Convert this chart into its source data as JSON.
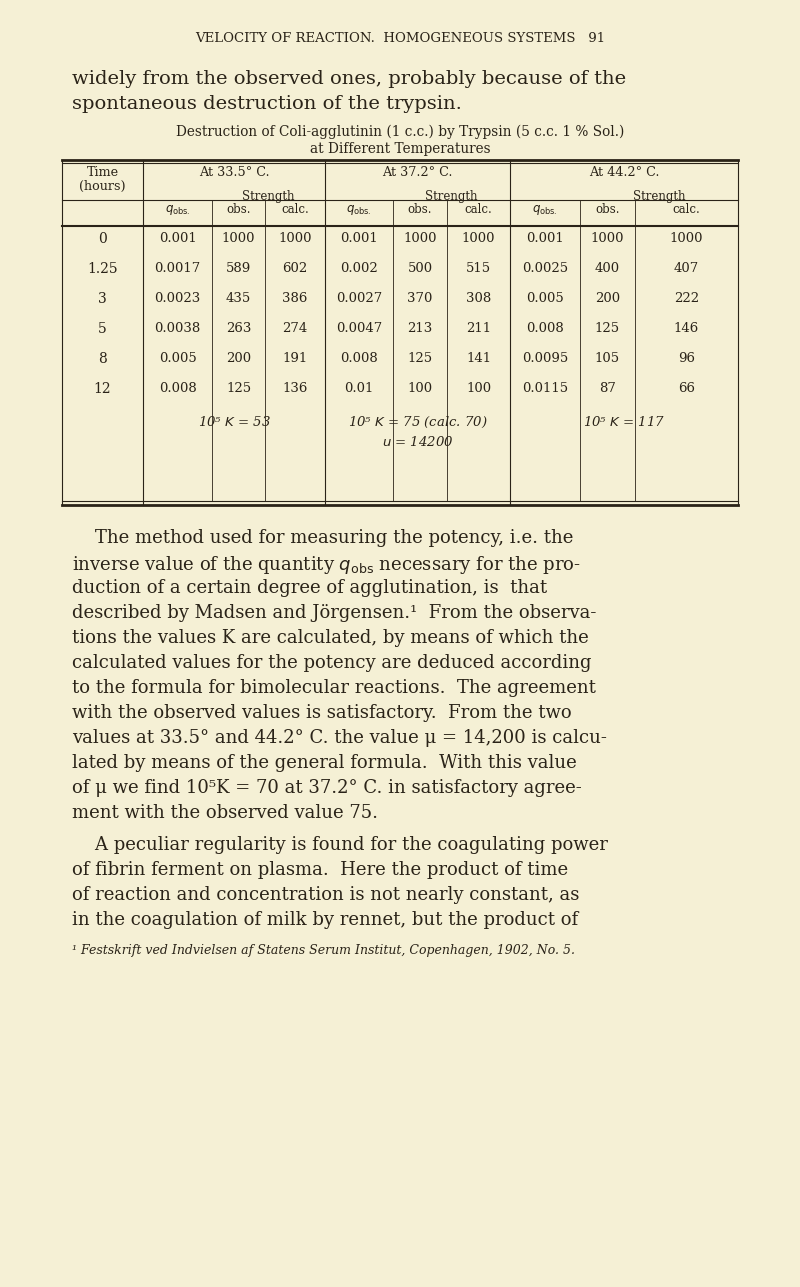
{
  "bg_color": "#f5f0d5",
  "text_color": "#2a2318",
  "header_text": "VELOCITY OF REACTION.  HOMOGENEOUS SYSTEMS   91",
  "intro_lines": [
    "widely from the observed ones, probably because of the",
    "spontaneous destruction of the trypsin.  "
  ],
  "table_title_line1": "Destruction of Coli-agglutinin (1 c.c.) by Trypsin (5 c.c. 1 % Sol.)",
  "table_title_line2": "at Different Temperatures",
  "table_data": {
    "time": [
      "0",
      "1.25",
      "3",
      "5",
      "8",
      "12"
    ],
    "temp1_qobs": [
      "0.001",
      "0.0017",
      "0.0023",
      "0.0038",
      "0.005",
      "0.008"
    ],
    "temp1_str_obs": [
      "1000",
      "589",
      "435",
      "263",
      "200",
      "125"
    ],
    "temp1_str_calc": [
      "1000",
      "602",
      "386",
      "274",
      "191",
      "136"
    ],
    "temp2_qobs": [
      "0.001",
      "0.002",
      "0.0027",
      "0.0047",
      "0.008",
      "0.01"
    ],
    "temp2_str_obs": [
      "1000",
      "500",
      "370",
      "213",
      "125",
      "100"
    ],
    "temp2_str_calc": [
      "1000",
      "515",
      "308",
      "211",
      "141",
      "100"
    ],
    "temp3_qobs": [
      "0.001",
      "0.0025",
      "0.005",
      "0.008",
      "0.0095",
      "0.0115"
    ],
    "temp3_str_obs": [
      "1000",
      "400",
      "200",
      "125",
      "105",
      "87"
    ],
    "temp3_str_calc": [
      "1000",
      "407",
      "222",
      "146",
      "96",
      "66"
    ]
  },
  "p1_lines": [
    "    The method used for measuring the potency, i.e. the",
    "inverse value of the quantity q_obs necessary for the pro-",
    "duction of a certain degree of agglutination, is  that",
    "described by Madsen and Jörgensen.¹  From the observa-",
    "tions the values K are calculated, by means of which the",
    "calculated values for the potency are deduced according",
    "to the formula for bimolecular reactions.  The agreement",
    "with the observed values is satisfactory.  From the two",
    "values at 33.5° and 44.2° C. the value μ = 14,200 is calcu-",
    "lated by means of the general formula.  With this value",
    "of μ we find 10⁵K = 70 at 37.2° C. in satisfactory agree-",
    "ment with the observed value 75."
  ],
  "p2_lines": [
    "    A peculiar regularity is found for the coagulating power",
    "of fibrin ferment on plasma.  Here the product of time",
    "of reaction and concentration is not nearly constant, as",
    "in the coagulation of milk by rennet, but the product of"
  ],
  "footnote": "¹ Festskrift ved Indvielsen af Statens Serum Institut, Copenhagen, 1902, No. 5."
}
